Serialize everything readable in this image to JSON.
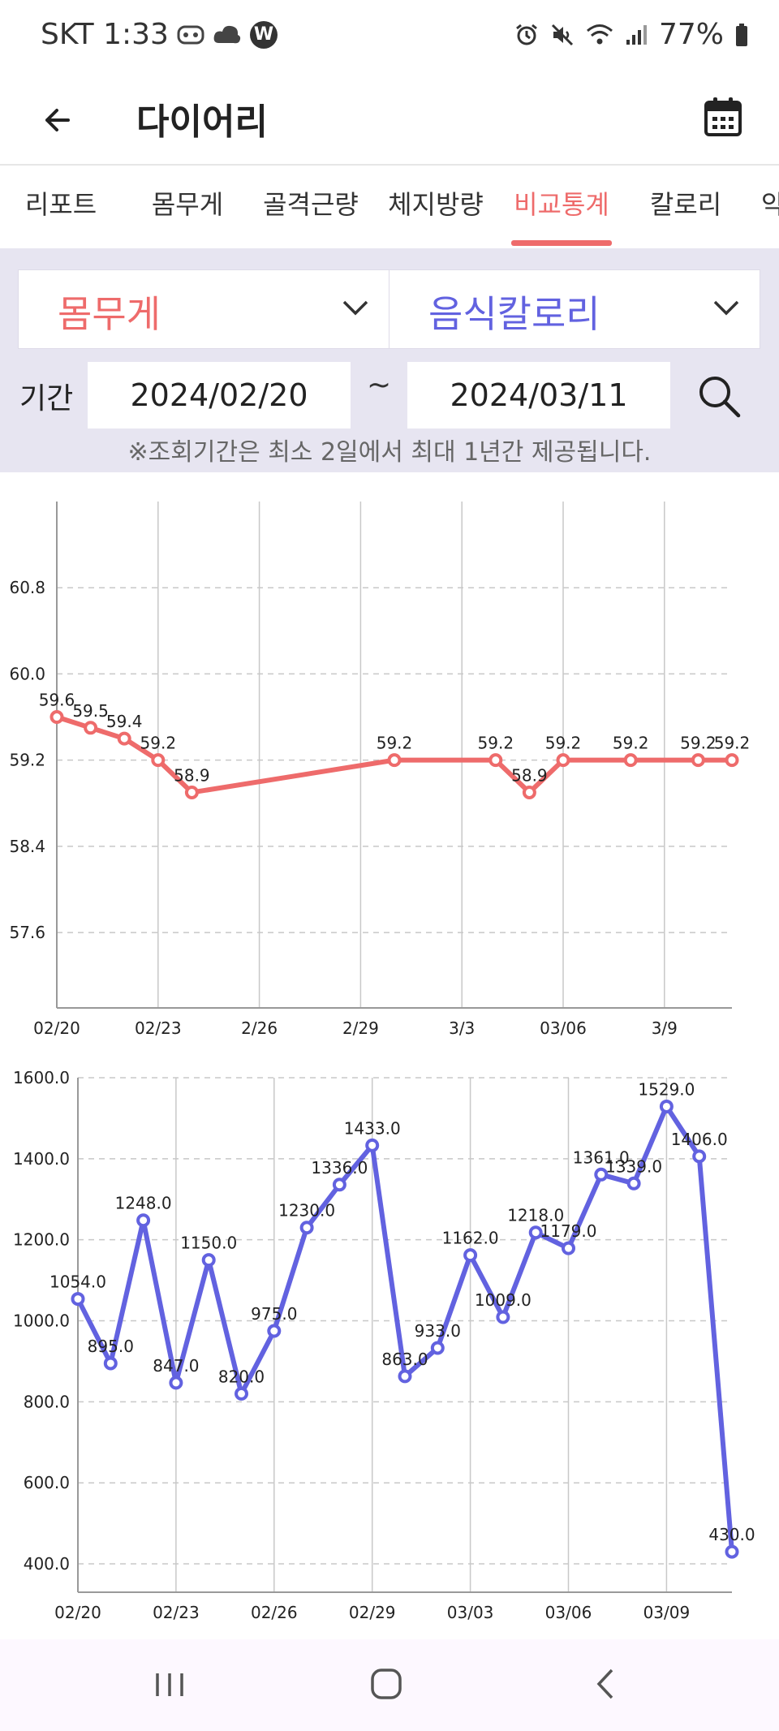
{
  "status_bar": {
    "carrier_time": "SKT 1:33",
    "notification_icons": [
      "game-app-icon",
      "cloud-icon",
      "webtoon-icon"
    ],
    "webtoon_letter": "W",
    "system_icons": [
      "alarm-icon",
      "mute-icon",
      "wifi-icon",
      "signal-icon"
    ],
    "battery": "77%"
  },
  "app_bar": {
    "title": "다이어리"
  },
  "tabs": [
    {
      "label": "리포트"
    },
    {
      "label": "몸무게"
    },
    {
      "label": "골격근량"
    },
    {
      "label": "체지방량"
    },
    {
      "label": "비교통계",
      "active": true
    },
    {
      "label": "칼로리"
    },
    {
      "label": "악"
    }
  ],
  "filter": {
    "metric1": {
      "label": "몸무게",
      "color": "#ee6b6b"
    },
    "metric2": {
      "label": "음식칼로리",
      "color": "#6262e0"
    },
    "period_label": "기간",
    "start_date": "2024/02/20",
    "tilde": "~",
    "end_date": "2024/03/11",
    "notice": "※조회기간은 최소 2일에서 최대 1년간 제공됩니다."
  },
  "chart_data": [
    {
      "type": "line",
      "title": "",
      "color": "#ee6b6b",
      "x_tick_labels": [
        "02/20",
        "02/23",
        "2/26",
        "2/29",
        "3/3",
        "03/06",
        "3/9"
      ],
      "x_ticks": [
        0,
        3,
        6,
        9,
        12,
        15,
        18
      ],
      "xlim": [
        0,
        20
      ],
      "y_ticks": [
        57.6,
        58.4,
        59.2,
        60.0,
        60.8
      ],
      "y_tick_labels": [
        "57.6",
        "58.4",
        "59.2",
        "60.0",
        "60.8"
      ],
      "ylim": [
        56.9,
        61.6
      ],
      "grid": true,
      "points": [
        {
          "x": 0,
          "y": 59.6,
          "label": "59.6"
        },
        {
          "x": 1,
          "y": 59.5,
          "label": "59.5"
        },
        {
          "x": 2,
          "y": 59.4,
          "label": "59.4"
        },
        {
          "x": 3,
          "y": 59.2,
          "label": "59.2"
        },
        {
          "x": 4,
          "y": 58.9,
          "label": "58.9"
        },
        {
          "x": 10,
          "y": 59.2,
          "label": "59.2"
        },
        {
          "x": 13,
          "y": 59.2,
          "label": "59.2"
        },
        {
          "x": 14,
          "y": 58.9,
          "label": "58.9"
        },
        {
          "x": 15,
          "y": 59.2,
          "label": "59.2"
        },
        {
          "x": 17,
          "y": 59.2,
          "label": "59.2"
        },
        {
          "x": 19,
          "y": 59.2,
          "label": "59.2"
        },
        {
          "x": 20,
          "y": 59.2,
          "label": "59.2"
        }
      ]
    },
    {
      "type": "line",
      "title": "",
      "color": "#6262e0",
      "x_tick_labels": [
        "02/20",
        "02/23",
        "02/26",
        "02/29",
        "03/03",
        "03/06",
        "03/09"
      ],
      "x_ticks": [
        0,
        3,
        6,
        9,
        12,
        15,
        18
      ],
      "xlim": [
        0,
        20
      ],
      "y_ticks": [
        400,
        600,
        800,
        1000,
        1200,
        1400,
        1600
      ],
      "y_tick_labels": [
        "400.0",
        "600.0",
        "800.0",
        "1000.0",
        "1200.0",
        "1400.0",
        "1600.0"
      ],
      "ylim": [
        330,
        1600
      ],
      "grid": true,
      "points": [
        {
          "x": 0,
          "y": 1054,
          "label": "1054.0"
        },
        {
          "x": 1,
          "y": 895,
          "label": "895.0"
        },
        {
          "x": 2,
          "y": 1248,
          "label": "1248.0"
        },
        {
          "x": 3,
          "y": 847,
          "label": "847.0"
        },
        {
          "x": 4,
          "y": 1150,
          "label": "1150.0"
        },
        {
          "x": 5,
          "y": 820,
          "label": "820.0"
        },
        {
          "x": 6,
          "y": 975,
          "label": "975.0"
        },
        {
          "x": 7,
          "y": 1230,
          "label": "1230.0"
        },
        {
          "x": 8,
          "y": 1336,
          "label": "1336.0"
        },
        {
          "x": 9,
          "y": 1433,
          "label": "1433.0"
        },
        {
          "x": 10,
          "y": 863,
          "label": "863.0"
        },
        {
          "x": 11,
          "y": 933,
          "label": "933.0"
        },
        {
          "x": 12,
          "y": 1162,
          "label": "1162.0"
        },
        {
          "x": 13,
          "y": 1009,
          "label": "1009.0"
        },
        {
          "x": 14,
          "y": 1218,
          "label": "1218.0"
        },
        {
          "x": 15,
          "y": 1179,
          "label": "1179.0"
        },
        {
          "x": 16,
          "y": 1361,
          "label": "1361.0"
        },
        {
          "x": 17,
          "y": 1339,
          "label": "1339.0"
        },
        {
          "x": 18,
          "y": 1529,
          "label": "1529.0"
        },
        {
          "x": 19,
          "y": 1406,
          "label": "1406.0"
        },
        {
          "x": 20,
          "y": 430,
          "label": "430.0"
        }
      ]
    }
  ],
  "nav_bar": {
    "buttons": [
      "recent-apps-icon",
      "home-icon",
      "back-nav-icon"
    ]
  }
}
